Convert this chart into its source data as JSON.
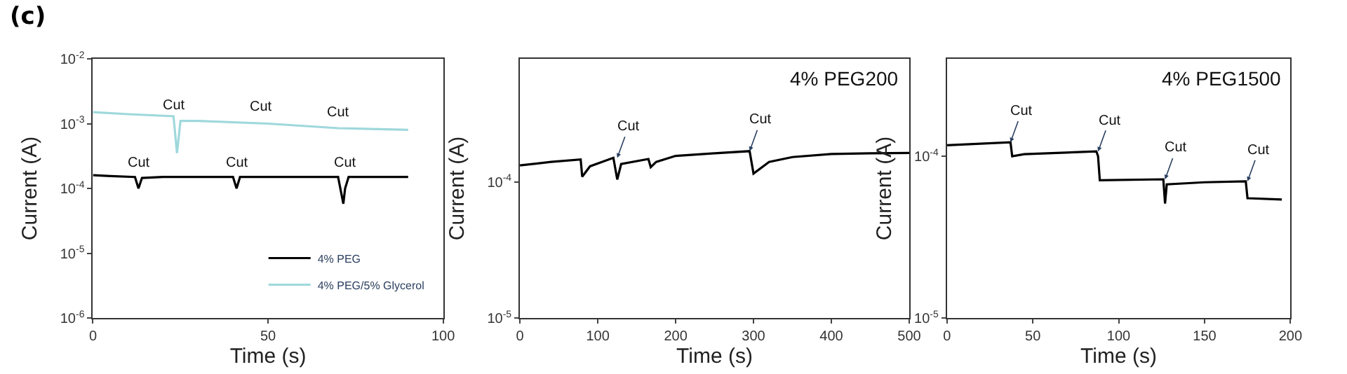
{
  "chart_data": [
    {
      "type": "line",
      "xlabel": "Time (s)",
      "ylabel": "Current (A)",
      "log": "y",
      "legend": "bottom right",
      "marker": "none",
      "line_style": "solid",
      "xlim": [
        0,
        100
      ],
      "xticks": [
        0,
        50,
        100
      ],
      "ylim": [
        1e-06,
        0.01
      ],
      "yticks": [
        {
          "value": 1e-06,
          "label": "10$^{-6}$"
        },
        {
          "value": 1e-05,
          "label": "10$^{-5}$"
        },
        {
          "value": 0.0001,
          "label": "10$^{-4}$"
        },
        {
          "value": 0.001,
          "label": "10$^{-3}$"
        },
        {
          "value": 0.01,
          "label": "10$^{-2}$"
        }
      ],
      "series": [
        {
          "name": "4% PEG",
          "color": "#000000",
          "x": [
            0,
            5,
            12,
            13,
            14,
            20,
            30,
            40,
            41,
            42,
            50,
            60,
            70,
            71.5,
            72,
            73,
            80,
            90
          ],
          "values": [
            0.00016,
            0.000155,
            0.00015,
            0.0001,
            0.000145,
            0.00015,
            0.00015,
            0.00015,
            0.0001,
            0.00015,
            0.00015,
            0.00015,
            0.00015,
            5.8e-05,
            0.0001,
            0.00015,
            0.00015,
            0.00015
          ]
        },
        {
          "name": "4% PEG/5% Glycerol",
          "color": "#9fd8dc",
          "x": [
            0,
            10,
            23,
            24,
            25,
            30,
            50,
            70,
            90
          ],
          "values": [
            0.0015,
            0.0014,
            0.0013,
            0.00035,
            0.0011,
            0.0011,
            0.001,
            0.00085,
            0.0008
          ]
        }
      ],
      "annotations": [
        "(c)",
        {
          "text": "Cut",
          "x": 23,
          "y": 0.0012
        },
        {
          "text": "Cut",
          "x": 48,
          "y": 0.0011
        },
        {
          "text": "Cut",
          "x": 70,
          "y": 0.0009
        },
        {
          "text": "Cut",
          "x": 13,
          "y": 0.00015
        },
        {
          "text": "Cut",
          "x": 41,
          "y": 0.00015
        },
        {
          "text": "Cut",
          "x": 72,
          "y": 0.00015
        }
      ]
    },
    {
      "type": "line",
      "title": "4% PEG200",
      "xlabel": "Time (s)",
      "ylabel": "Current (A)",
      "log": "y",
      "marker": "none",
      "line_style": "solid",
      "xlim": [
        0,
        500
      ],
      "xticks": [
        0,
        100,
        200,
        300,
        400,
        500
      ],
      "ylim": [
        1e-05,
        0.0008
      ],
      "yticks": [
        {
          "value": 1e-05,
          "label": "10$^{-5}$"
        },
        {
          "value": 0.0001,
          "label": "10$^{-4}$"
        }
      ],
      "series": [
        {
          "color": "#000000",
          "x": [
            0,
            40,
            78,
            80,
            90,
            120,
            125,
            130,
            165,
            168,
            175,
            200,
            250,
            295,
            300,
            320,
            350,
            400,
            450,
            500
          ],
          "values": [
            0.000132,
            0.00014,
            0.000146,
            0.000109,
            0.00013,
            0.00015,
            0.000104,
            0.000135,
            0.000147,
            0.000128,
            0.00014,
            0.000155,
            0.000162,
            0.000168,
            0.000115,
            0.00014,
            0.000152,
            0.00016,
            0.000162,
            0.000163
          ]
        }
      ],
      "annotations": [
        {
          "text": "Cut",
          "x": 125,
          "y": 0.00015
        },
        {
          "text": "Cut",
          "x": 295,
          "y": 0.000168
        }
      ]
    },
    {
      "type": "line",
      "title": "4% PEG1500",
      "xlabel": "Time (s)",
      "ylabel": "Current (A)",
      "log": "y",
      "marker": "none",
      "line_style": "solid",
      "xlim": [
        0,
        200
      ],
      "xticks": [
        0,
        50,
        100,
        150,
        200
      ],
      "ylim": [
        1e-05,
        0.0004
      ],
      "yticks": [
        {
          "value": 1e-05,
          "label": "10$^{-5}$"
        },
        {
          "value": 0.0001,
          "label": "10$^{-4}$"
        }
      ],
      "series": [
        {
          "color": "#000000",
          "x": [
            0,
            37,
            38,
            45,
            87,
            88,
            89,
            126,
            127,
            128,
            150,
            174,
            175,
            195
          ],
          "values": [
            0.000117,
            0.000122,
            0.0001,
            0.000103,
            0.000107,
            0.0001,
            7.1e-05,
            7.2e-05,
            5.1e-05,
            6.7e-05,
            6.9e-05,
            7e-05,
            5.5e-05,
            5.4e-05
          ]
        }
      ],
      "annotations": [
        {
          "text": "Cut",
          "x": 37,
          "y": 0.000122
        },
        {
          "text": "Cut",
          "x": 88,
          "y": 0.000107
        },
        {
          "text": "Cut",
          "x": 127,
          "y": 7.2e-05
        },
        {
          "text": "Cut",
          "x": 175,
          "y": 7e-05
        }
      ]
    }
  ]
}
